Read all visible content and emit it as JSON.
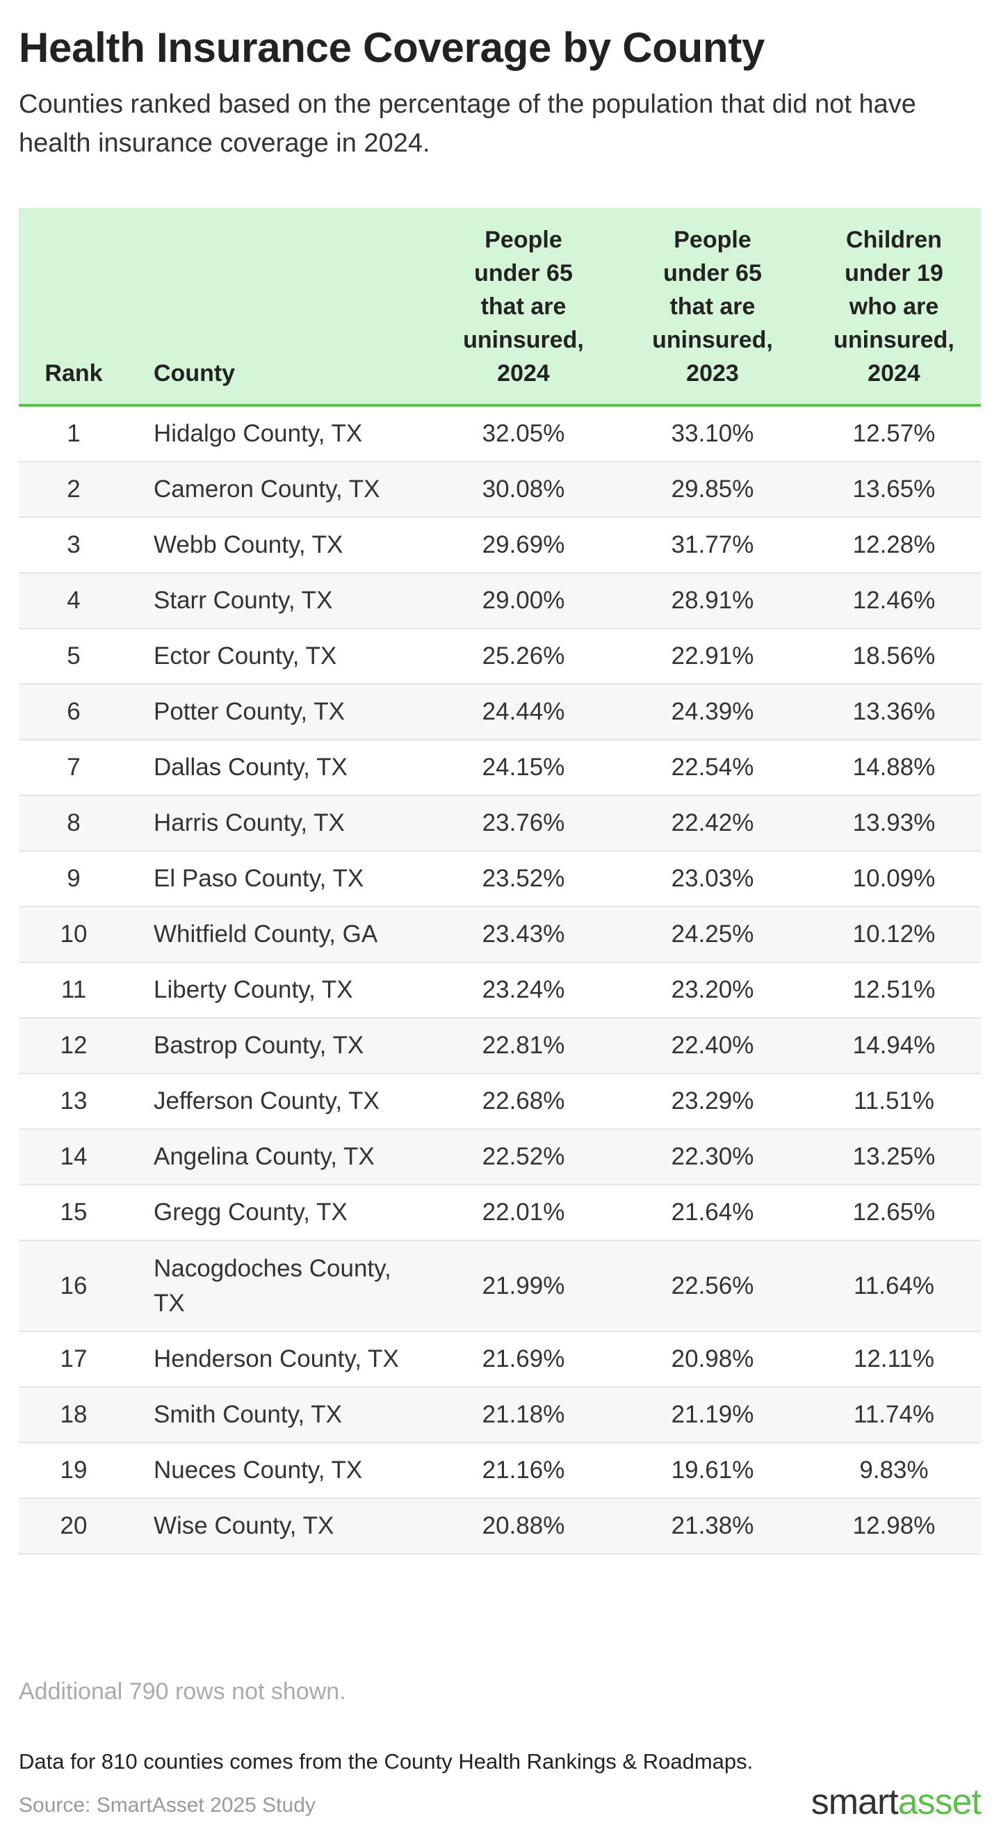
{
  "header": {
    "title": "Health Insurance Coverage by County",
    "subtitle": "Counties ranked based on the percentage of the population that did not have health insurance coverage in 2024."
  },
  "table": {
    "columns": [
      "Rank",
      "County",
      "People under 65 that are uninsured, 2024",
      "People under 65 that are uninsured, 2023",
      "Children under 19 who are uninsured, 2024"
    ],
    "rows": [
      [
        "1",
        "Hidalgo County, TX",
        "32.05%",
        "33.10%",
        "12.57%"
      ],
      [
        "2",
        "Cameron County, TX",
        "30.08%",
        "29.85%",
        "13.65%"
      ],
      [
        "3",
        "Webb County, TX",
        "29.69%",
        "31.77%",
        "12.28%"
      ],
      [
        "4",
        "Starr County, TX",
        "29.00%",
        "28.91%",
        "12.46%"
      ],
      [
        "5",
        "Ector County, TX",
        "25.26%",
        "22.91%",
        "18.56%"
      ],
      [
        "6",
        "Potter County, TX",
        "24.44%",
        "24.39%",
        "13.36%"
      ],
      [
        "7",
        "Dallas County, TX",
        "24.15%",
        "22.54%",
        "14.88%"
      ],
      [
        "8",
        "Harris County, TX",
        "23.76%",
        "22.42%",
        "13.93%"
      ],
      [
        "9",
        "El Paso County, TX",
        "23.52%",
        "23.03%",
        "10.09%"
      ],
      [
        "10",
        "Whitfield County, GA",
        "23.43%",
        "24.25%",
        "10.12%"
      ],
      [
        "11",
        "Liberty County, TX",
        "23.24%",
        "23.20%",
        "12.51%"
      ],
      [
        "12",
        "Bastrop County, TX",
        "22.81%",
        "22.40%",
        "14.94%"
      ],
      [
        "13",
        "Jefferson County, TX",
        "22.68%",
        "23.29%",
        "11.51%"
      ],
      [
        "14",
        "Angelina County, TX",
        "22.52%",
        "22.30%",
        "13.25%"
      ],
      [
        "15",
        "Gregg County, TX",
        "22.01%",
        "21.64%",
        "12.65%"
      ],
      [
        "16",
        "Nacogdoches County, TX",
        "21.99%",
        "22.56%",
        "11.64%"
      ],
      [
        "17",
        "Henderson County, TX",
        "21.69%",
        "20.98%",
        "12.11%"
      ],
      [
        "18",
        "Smith County, TX",
        "21.18%",
        "21.19%",
        "11.74%"
      ],
      [
        "19",
        "Nueces County, TX",
        "21.16%",
        "19.61%",
        "9.83%"
      ],
      [
        "20",
        "Wise County, TX",
        "20.88%",
        "21.38%",
        "12.98%"
      ]
    ],
    "more_rows_note": "Additional 790 rows not shown."
  },
  "footer": {
    "note": "Data for 810 counties comes from the County Health Rankings & Roadmaps.",
    "source": "Source: SmartAsset 2025 Study",
    "logo": [
      "smart",
      "asset"
    ]
  }
}
